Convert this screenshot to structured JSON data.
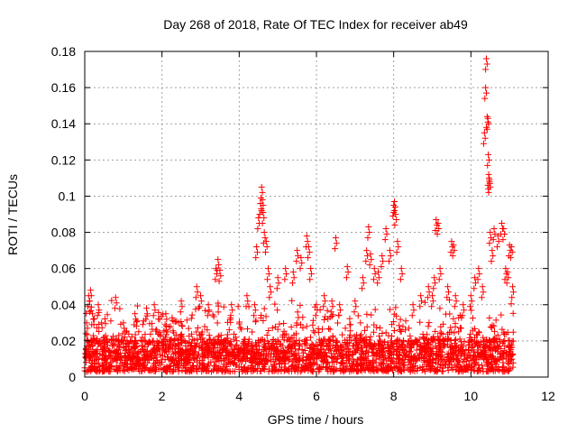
{
  "chart_data": {
    "type": "scatter",
    "title": "Day 268 of 2018, Rate Of TEC Index for receiver ab49",
    "xlabel": "GPS time / hours",
    "ylabel": "ROTI / TECUs",
    "xlim": [
      0,
      12
    ],
    "ylim": [
      0,
      0.18
    ],
    "x_ticks": [
      0,
      2,
      4,
      6,
      8,
      10,
      12
    ],
    "x_tick_labels": [
      "0",
      "2",
      "4",
      "6",
      "8",
      "10",
      "12"
    ],
    "y_ticks": [
      0,
      0.02,
      0.04,
      0.06,
      0.08,
      0.1,
      0.12,
      0.14,
      0.16,
      0.18
    ],
    "y_tick_labels": [
      "0",
      "0.02",
      "0.04",
      "0.06",
      "0.08",
      "0.1",
      "0.12",
      "0.14",
      "0.16",
      "0.18"
    ],
    "grid": true,
    "marker": "+",
    "color": "#ff0000",
    "series": [
      {
        "name": "ROTI",
        "points": [
          [
            0.05,
            0.03
          ],
          [
            0.08,
            0.02
          ],
          [
            0.1,
            0.045
          ],
          [
            0.15,
            0.048
          ],
          [
            0.18,
            0.012
          ],
          [
            0.2,
            0.035
          ],
          [
            0.35,
            0.04
          ],
          [
            0.5,
            0.022
          ],
          [
            0.8,
            0.044
          ],
          [
            1.0,
            0.03
          ],
          [
            1.3,
            0.035
          ],
          [
            1.6,
            0.038
          ],
          [
            1.8,
            0.04
          ],
          [
            2.1,
            0.035
          ],
          [
            2.5,
            0.042
          ],
          [
            2.9,
            0.05
          ],
          [
            3.0,
            0.045
          ],
          [
            3.2,
            0.04
          ],
          [
            3.4,
            0.06
          ],
          [
            3.45,
            0.065
          ],
          [
            3.5,
            0.059
          ],
          [
            3.8,
            0.04
          ],
          [
            4.2,
            0.045
          ],
          [
            4.4,
            0.04
          ],
          [
            4.45,
            0.072
          ],
          [
            4.5,
            0.088
          ],
          [
            4.55,
            0.096
          ],
          [
            4.58,
            0.105
          ],
          [
            4.6,
            0.098
          ],
          [
            4.62,
            0.091
          ],
          [
            4.65,
            0.08
          ],
          [
            4.7,
            0.075
          ],
          [
            4.75,
            0.06
          ],
          [
            4.8,
            0.05
          ],
          [
            5.0,
            0.055
          ],
          [
            5.2,
            0.06
          ],
          [
            5.4,
            0.058
          ],
          [
            5.5,
            0.07
          ],
          [
            5.6,
            0.066
          ],
          [
            5.75,
            0.078
          ],
          [
            5.8,
            0.072
          ],
          [
            5.85,
            0.06
          ],
          [
            6.0,
            0.04
          ],
          [
            6.2,
            0.045
          ],
          [
            6.4,
            0.042
          ],
          [
            6.5,
            0.077
          ],
          [
            6.6,
            0.04
          ],
          [
            6.8,
            0.061
          ],
          [
            7.0,
            0.042
          ],
          [
            7.2,
            0.055
          ],
          [
            7.3,
            0.07
          ],
          [
            7.35,
            0.083
          ],
          [
            7.4,
            0.068
          ],
          [
            7.5,
            0.06
          ],
          [
            7.6,
            0.058
          ],
          [
            7.7,
            0.067
          ],
          [
            7.8,
            0.082
          ],
          [
            7.9,
            0.07
          ],
          [
            8.0,
            0.095
          ],
          [
            8.02,
            0.097
          ],
          [
            8.05,
            0.09
          ],
          [
            8.1,
            0.075
          ],
          [
            8.2,
            0.06
          ],
          [
            8.5,
            0.04
          ],
          [
            8.7,
            0.045
          ],
          [
            8.9,
            0.05
          ],
          [
            9.0,
            0.045
          ],
          [
            9.05,
            0.055
          ],
          [
            9.1,
            0.087
          ],
          [
            9.15,
            0.085
          ],
          [
            9.2,
            0.06
          ],
          [
            9.4,
            0.05
          ],
          [
            9.5,
            0.075
          ],
          [
            9.55,
            0.073
          ],
          [
            9.6,
            0.045
          ],
          [
            9.8,
            0.04
          ],
          [
            10.0,
            0.045
          ],
          [
            10.1,
            0.055
          ],
          [
            10.2,
            0.06
          ],
          [
            10.3,
            0.05
          ],
          [
            10.35,
            0.135
          ],
          [
            10.38,
            0.16
          ],
          [
            10.4,
            0.176
          ],
          [
            10.42,
            0.144
          ],
          [
            10.44,
            0.143
          ],
          [
            10.45,
            0.123
          ],
          [
            10.46,
            0.112
          ],
          [
            10.47,
            0.11
          ],
          [
            10.48,
            0.108
          ],
          [
            10.5,
            0.08
          ],
          [
            10.55,
            0.07
          ],
          [
            10.6,
            0.082
          ],
          [
            10.7,
            0.078
          ],
          [
            10.8,
            0.085
          ],
          [
            10.85,
            0.082
          ],
          [
            10.9,
            0.06
          ],
          [
            10.95,
            0.058
          ],
          [
            11.0,
            0.073
          ],
          [
            11.05,
            0.072
          ],
          [
            11.08,
            0.05
          ]
        ]
      }
    ],
    "dense_band": {
      "x_range": [
        0,
        11.1
      ],
      "y_range": [
        0.003,
        0.038
      ],
      "note": "dense cloud of ROTI samples between 0 and about 0.04 TECU/min across the full time span"
    }
  }
}
